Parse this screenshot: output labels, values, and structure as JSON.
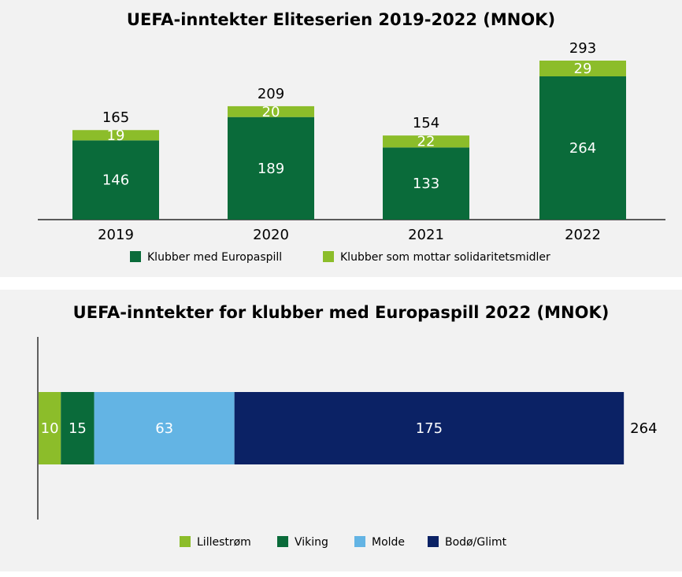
{
  "chart_data": [
    {
      "type": "bar",
      "stacked": true,
      "title": "UEFA-inntekter Eliteserien 2019-2022 (MNOK)",
      "categories": [
        "2019",
        "2020",
        "2021",
        "2022"
      ],
      "series": [
        {
          "name": "Klubber med Europaspill",
          "color": "#0a6b3a",
          "values": [
            146,
            189,
            133,
            264
          ]
        },
        {
          "name": "Klubber som mottar solidaritetsmidler",
          "color": "#8cbd2a",
          "values": [
            19,
            20,
            22,
            29
          ]
        }
      ],
      "totals": [
        165,
        209,
        154,
        293
      ]
    },
    {
      "type": "hbar",
      "stacked": true,
      "title": "UEFA-inntekter for klubber med Europaspill 2022 (MNOK)",
      "categories": [
        null
      ],
      "series": [
        {
          "name": "Lillestrøm",
          "color": "#8cbd2a",
          "values": [
            10
          ]
        },
        {
          "name": "Viking",
          "color": "#0a6b3a",
          "values": [
            15
          ]
        },
        {
          "name": "Molde",
          "color": "#63b4e4",
          "values": [
            63
          ]
        },
        {
          "name": "Bodø/Glimt",
          "color": "#0b2265",
          "values": [
            175
          ]
        }
      ],
      "totals": [
        264
      ]
    }
  ]
}
